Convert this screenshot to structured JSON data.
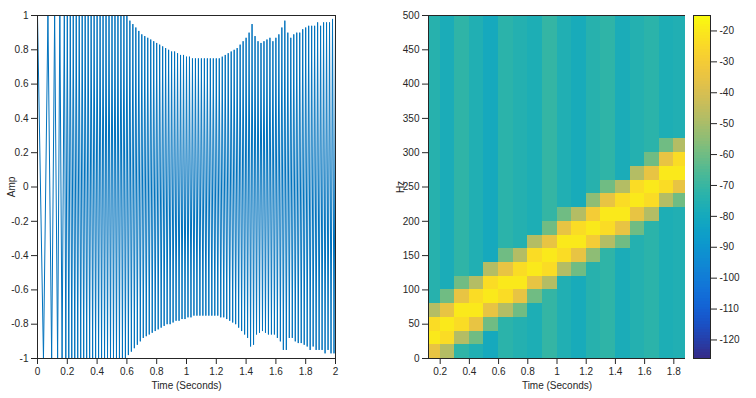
{
  "chart_data": [
    {
      "type": "line",
      "xlabel": "Time (Seconds)",
      "ylabel": "Amp",
      "color": "#0072bd",
      "xlim": [
        0,
        2
      ],
      "xticks": [
        0,
        0.2,
        0.4,
        0.6,
        0.8,
        1,
        1.2,
        1.4,
        1.6,
        1.8,
        2
      ],
      "ylim": [
        -1,
        1
      ],
      "yticks": [
        -1,
        -0.8,
        -0.6,
        -0.4,
        -0.2,
        0,
        0.2,
        0.4,
        0.6,
        0.8,
        1
      ],
      "x": [
        0,
        0.04,
        0.07,
        0.095,
        0.115,
        0.135,
        0.15,
        0.165,
        0.18,
        0.19,
        0.2,
        0.21,
        0.22,
        0.23,
        0.24,
        0.25,
        0.26,
        0.27,
        0.28,
        0.29,
        0.3,
        0.31,
        0.32,
        0.33,
        0.34,
        0.35,
        0.36,
        0.37,
        0.38,
        0.39,
        0.4,
        0.41,
        0.42,
        0.43,
        0.44,
        0.45,
        0.46,
        0.47,
        0.48,
        0.49,
        0.5,
        0.51,
        0.52,
        0.53,
        0.54,
        0.55,
        0.56,
        0.57,
        0.58,
        0.59,
        0.6,
        0.61,
        0.62,
        0.63,
        0.64,
        0.65,
        0.66,
        0.67,
        0.68,
        0.69,
        0.7,
        0.71,
        0.72,
        0.73,
        0.74,
        0.75,
        0.76,
        0.77,
        0.78,
        0.79,
        0.8,
        0.81,
        0.82,
        0.83,
        0.84,
        0.85,
        0.86,
        0.87,
        0.88,
        0.89,
        0.9,
        0.91,
        0.92,
        0.93,
        0.94,
        0.95,
        0.96,
        0.97,
        0.98,
        0.99,
        1,
        1.01,
        1.02,
        1.03,
        1.04,
        1.05,
        1.06,
        1.07,
        1.08,
        1.09,
        1.1,
        1.11,
        1.12,
        1.13,
        1.14,
        1.15,
        1.16,
        1.17,
        1.18,
        1.19,
        1.2,
        1.21,
        1.22,
        1.23,
        1.24,
        1.25,
        1.26,
        1.27,
        1.28,
        1.29,
        1.3,
        1.31,
        1.32,
        1.33,
        1.34,
        1.35,
        1.36,
        1.37,
        1.38,
        1.39,
        1.4,
        1.41,
        1.42,
        1.43,
        1.44,
        1.45,
        1.46,
        1.47,
        1.48,
        1.49,
        1.5,
        1.51,
        1.52,
        1.53,
        1.54,
        1.55,
        1.56,
        1.57,
        1.58,
        1.59,
        1.6,
        1.61,
        1.62,
        1.63,
        1.64,
        1.65,
        1.66,
        1.67,
        1.68,
        1.69,
        1.7,
        1.71,
        1.72,
        1.73,
        1.74,
        1.75,
        1.76,
        1.77,
        1.78,
        1.79,
        1.8,
        1.81,
        1.82,
        1.83,
        1.84,
        1.85,
        1.86,
        1.87,
        1.88,
        1.89,
        1.9,
        1.91,
        1.92,
        1.93,
        1.94,
        1.95,
        1.96,
        1.97,
        1.98,
        1.99,
        2
      ],
      "values": [
        1,
        -1,
        1,
        -1,
        1,
        -1,
        1,
        -1,
        1,
        -1,
        1,
        -1,
        1,
        -1,
        1,
        -1,
        1,
        -1,
        1,
        -1,
        1,
        -1,
        1,
        -1,
        1,
        -1,
        1,
        -1,
        1,
        -1,
        1,
        -1,
        1,
        -1,
        1,
        -1,
        1,
        -1,
        1,
        -1,
        1,
        -1,
        1,
        -1,
        1,
        -1,
        1,
        -1,
        1,
        -1,
        1,
        -0.98,
        0.97,
        -0.96,
        0.95,
        -0.94,
        0.93,
        -0.92,
        0.91,
        -0.9,
        0.89,
        -0.88,
        0.88,
        -0.87,
        0.87,
        -0.86,
        0.86,
        -0.85,
        0.85,
        -0.84,
        0.84,
        -0.83,
        0.83,
        -0.82,
        0.82,
        -0.81,
        0.81,
        -0.8,
        0.8,
        -0.8,
        0.79,
        -0.79,
        0.79,
        -0.78,
        0.78,
        -0.78,
        0.77,
        -0.77,
        0.77,
        -0.77,
        0.76,
        -0.76,
        0.76,
        -0.76,
        0.75,
        -0.75,
        0.75,
        -0.75,
        0.75,
        -0.75,
        0.75,
        -0.75,
        0.75,
        -0.75,
        0.75,
        -0.75,
        0.75,
        -0.75,
        0.75,
        -0.75,
        0.75,
        -0.75,
        0.75,
        -0.76,
        0.76,
        -0.76,
        0.77,
        -0.77,
        0.78,
        -0.78,
        0.79,
        -0.79,
        0.8,
        -0.8,
        0.81,
        -0.82,
        0.83,
        -0.84,
        0.85,
        -0.86,
        0.87,
        -0.88,
        0.9,
        -0.93,
        0.95,
        -0.92,
        0.88,
        -0.86,
        0.85,
        -0.85,
        0.84,
        -0.84,
        0.85,
        -0.85,
        0.86,
        -0.86,
        0.87,
        -0.86,
        0.85,
        -0.86,
        0.87,
        -0.88,
        0.89,
        -0.9,
        0.93,
        -0.95,
        0.97,
        -0.95,
        0.9,
        -0.88,
        0.87,
        -0.88,
        0.89,
        -0.9,
        0.9,
        -0.91,
        0.9,
        -0.91,
        0.92,
        -0.92,
        0.93,
        -0.93,
        0.94,
        -0.95,
        0.94,
        -0.93,
        0.94,
        -0.95,
        0.96,
        -0.95,
        0.94,
        -0.95,
        0.96,
        -0.97,
        0.96,
        -0.95,
        0.96,
        -0.97,
        0.98,
        -0.97,
        0.96
      ]
    },
    {
      "type": "heatmap",
      "xlabel": "Time (Seconds)",
      "ylabel": "Hz",
      "xlim": [
        0.12,
        1.88
      ],
      "xticks": [
        0.2,
        0.4,
        0.6,
        0.8,
        1,
        1.2,
        1.4,
        1.6,
        1.8
      ],
      "ylim": [
        0,
        500
      ],
      "yticks": [
        0,
        50,
        100,
        150,
        200,
        250,
        300,
        350,
        400,
        450,
        500
      ],
      "time_edges": [
        0.1,
        0.2,
        0.3,
        0.4,
        0.5,
        0.6,
        0.7,
        0.8,
        0.9,
        1,
        1.1,
        1.2,
        1.3,
        1.4,
        1.5,
        1.6,
        1.7,
        1.8,
        1.9
      ],
      "freq_edges": [
        0,
        20,
        40,
        60,
        80,
        100,
        120,
        140,
        160,
        180,
        200,
        220,
        240,
        260,
        280,
        300,
        320,
        340,
        360,
        380,
        400,
        420,
        440,
        460,
        480,
        500
      ],
      "cells": [
        [
          -35,
          -20,
          -24,
          -48,
          -74,
          -74,
          -74,
          -74,
          -74,
          -74,
          -74,
          -74,
          -74,
          -74,
          -74,
          -74,
          -74,
          -74,
          -74,
          -74,
          -74,
          -74,
          -74,
          -74,
          -74
        ],
        [
          -48,
          -24,
          -20,
          -35,
          -60,
          -78,
          -78,
          -78,
          -78,
          -78,
          -78,
          -78,
          -78,
          -78,
          -78,
          -78,
          -78,
          -78,
          -78,
          -78,
          -78,
          -78,
          -78,
          -78,
          -78
        ],
        [
          -72,
          -48,
          -24,
          -20,
          -35,
          -60,
          -72,
          -72,
          -72,
          -72,
          -72,
          -72,
          -72,
          -72,
          -72,
          -72,
          -72,
          -72,
          -72,
          -72,
          -72,
          -72,
          -72,
          -72,
          -72
        ],
        [
          -76,
          -60,
          -35,
          -20,
          -24,
          -48,
          -76,
          -76,
          -76,
          -76,
          -76,
          -76,
          -76,
          -76,
          -76,
          -76,
          -76,
          -76,
          -76,
          -76,
          -76,
          -76,
          -76,
          -76,
          -76
        ],
        [
          -80,
          -80,
          -60,
          -35,
          -20,
          -24,
          -48,
          -80,
          -80,
          -80,
          -80,
          -80,
          -80,
          -80,
          -80,
          -80,
          -80,
          -80,
          -80,
          -80,
          -80,
          -80,
          -80,
          -80,
          -80
        ],
        [
          -73,
          -73,
          -73,
          -48,
          -24,
          -20,
          -35,
          -60,
          -73,
          -73,
          -73,
          -73,
          -73,
          -73,
          -73,
          -73,
          -73,
          -73,
          -73,
          -73,
          -73,
          -73,
          -73,
          -73,
          -73
        ],
        [
          -75,
          -75,
          -75,
          -60,
          -35,
          -20,
          -24,
          -48,
          -75,
          -75,
          -75,
          -75,
          -75,
          -75,
          -75,
          -75,
          -75,
          -75,
          -75,
          -75,
          -75,
          -75,
          -75,
          -75,
          -75
        ],
        [
          -77,
          -77,
          -77,
          -77,
          -60,
          -35,
          -20,
          -24,
          -48,
          -77,
          -77,
          -77,
          -77,
          -77,
          -77,
          -77,
          -77,
          -77,
          -77,
          -77,
          -77,
          -77,
          -77,
          -77,
          -77
        ],
        [
          -71,
          -71,
          -71,
          -71,
          -71,
          -48,
          -24,
          -20,
          -35,
          -60,
          -71,
          -71,
          -71,
          -71,
          -71,
          -71,
          -71,
          -71,
          -71,
          -71,
          -71,
          -71,
          -71,
          -71,
          -71
        ],
        [
          -76,
          -76,
          -76,
          -76,
          -76,
          -76,
          -48,
          -24,
          -20,
          -35,
          -60,
          -76,
          -76,
          -76,
          -76,
          -76,
          -76,
          -76,
          -76,
          -76,
          -76,
          -76,
          -76,
          -76,
          -76
        ],
        [
          -79,
          -79,
          -79,
          -79,
          -79,
          -79,
          -60,
          -35,
          -20,
          -24,
          -48,
          -79,
          -79,
          -79,
          -79,
          -79,
          -79,
          -79,
          -79,
          -79,
          -79,
          -79,
          -79,
          -79,
          -79
        ],
        [
          -74,
          -74,
          -74,
          -74,
          -74,
          -74,
          -74,
          -55,
          -30,
          -20,
          -30,
          -55,
          -74,
          -74,
          -74,
          -74,
          -74,
          -74,
          -74,
          -74,
          -74,
          -74,
          -74,
          -74,
          -74
        ],
        [
          -72,
          -72,
          -72,
          -72,
          -72,
          -72,
          -72,
          -72,
          -48,
          -24,
          -20,
          -35,
          -60,
          -72,
          -72,
          -72,
          -72,
          -72,
          -72,
          -72,
          -72,
          -72,
          -72,
          -72,
          -72
        ],
        [
          -78,
          -78,
          -78,
          -78,
          -78,
          -78,
          -78,
          -78,
          -60,
          -35,
          -20,
          -24,
          -48,
          -78,
          -78,
          -78,
          -78,
          -78,
          -78,
          -78,
          -78,
          -78,
          -78,
          -78,
          -78
        ],
        [
          -75,
          -75,
          -75,
          -75,
          -75,
          -75,
          -75,
          -75,
          -75,
          -60,
          -35,
          -20,
          -24,
          -48,
          -75,
          -75,
          -75,
          -75,
          -75,
          -75,
          -75,
          -75,
          -75,
          -75,
          -75
        ],
        [
          -73,
          -73,
          -73,
          -73,
          -73,
          -73,
          -73,
          -73,
          -73,
          -73,
          -48,
          -24,
          -20,
          -35,
          -60,
          -73,
          -73,
          -73,
          -73,
          -73,
          -73,
          -73,
          -73,
          -73,
          -73
        ],
        [
          -77,
          -77,
          -77,
          -77,
          -77,
          -77,
          -77,
          -77,
          -77,
          -77,
          -77,
          -48,
          -24,
          -20,
          -35,
          -60,
          -77,
          -77,
          -77,
          -77,
          -77,
          -77,
          -77,
          -77,
          -77
        ],
        [
          -76,
          -76,
          -76,
          -76,
          -76,
          -76,
          -76,
          -76,
          -76,
          -76,
          -76,
          -60,
          -35,
          -20,
          -24,
          -48,
          -76,
          -76,
          -76,
          -76,
          -76,
          -76,
          -76,
          -76,
          -76
        ]
      ],
      "colorbar": {
        "lim": [
          -126,
          -15
        ],
        "ticks": [
          -20,
          -30,
          -40,
          -50,
          -60,
          -70,
          -80,
          -90,
          -100,
          -110,
          -120
        ]
      }
    }
  ]
}
